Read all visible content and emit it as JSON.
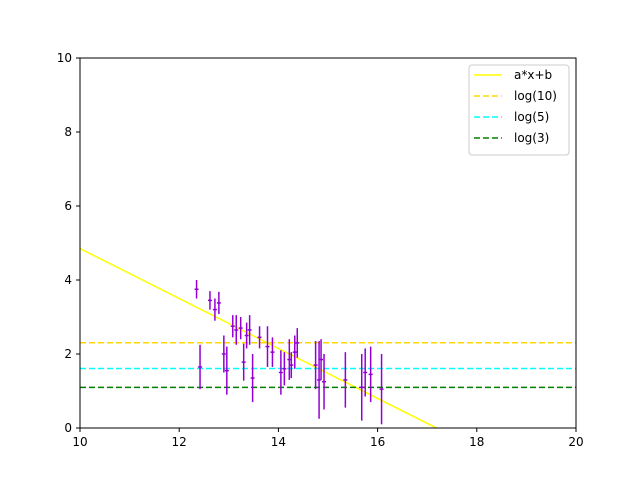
{
  "chart_data": {
    "type": "scatter",
    "title": "",
    "xlabel": "",
    "ylabel": "",
    "xlim": [
      10,
      20
    ],
    "ylim": [
      0,
      10
    ],
    "xticks": [
      "10",
      "12",
      "14",
      "16",
      "18",
      "20"
    ],
    "yticks": [
      "0",
      "2",
      "4",
      "6",
      "8",
      "10"
    ],
    "grid": false,
    "legend_position": "top-right",
    "points": {
      "color": "#9400d3",
      "x": [
        12.35,
        12.42,
        12.62,
        12.72,
        12.8,
        12.9,
        12.96,
        13.08,
        13.15,
        13.24,
        13.3,
        13.36,
        13.42,
        13.48,
        13.62,
        13.78,
        13.88,
        14.05,
        14.12,
        14.22,
        14.26,
        14.33,
        14.38,
        14.75,
        14.82,
        14.86,
        14.92,
        15.35,
        15.68,
        15.75,
        15.86,
        16.08
      ],
      "y": [
        3.75,
        1.65,
        3.45,
        3.2,
        3.38,
        2.0,
        1.55,
        2.75,
        2.65,
        2.7,
        1.78,
        2.5,
        2.65,
        1.35,
        2.45,
        2.2,
        2.05,
        1.5,
        1.6,
        1.85,
        1.7,
        2.05,
        2.3,
        1.7,
        1.3,
        1.85,
        1.25,
        1.3,
        1.1,
        1.5,
        1.45,
        1.05
      ],
      "yerr": [
        0.25,
        0.6,
        0.25,
        0.3,
        0.3,
        0.5,
        0.65,
        0.3,
        0.4,
        0.3,
        0.5,
        0.35,
        0.4,
        0.65,
        0.3,
        0.55,
        0.4,
        0.6,
        0.45,
        0.55,
        0.35,
        0.45,
        0.4,
        0.65,
        1.05,
        0.55,
        0.75,
        0.75,
        0.9,
        0.65,
        0.75,
        0.95
      ],
      "xerr": 0.04
    },
    "series": [
      {
        "name": "a*x+b",
        "kind": "line",
        "color": "#ffff00",
        "style": "solid",
        "slope": -0.675,
        "intercept": 11.6
      },
      {
        "name": "log(10)",
        "kind": "hline",
        "color": "#ffd700",
        "style": "dashed",
        "y": 2.302585
      },
      {
        "name": "log(5)",
        "kind": "hline",
        "color": "#00ffff",
        "style": "dashed",
        "y": 1.609438
      },
      {
        "name": "log(3)",
        "kind": "hline",
        "color": "#008000",
        "style": "dashed",
        "y": 1.098612
      }
    ]
  }
}
